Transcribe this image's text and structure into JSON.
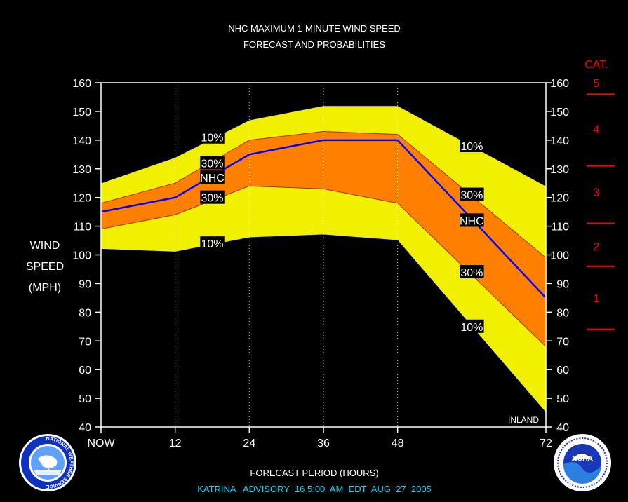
{
  "chart_data": {
    "type": "area",
    "title": "NHC MAXIMUM 1-MINUTE WIND SPEED",
    "subtitle": "FORECAST AND PROBABILITIES",
    "ylabel": [
      "WIND",
      "SPEED",
      "(MPH)"
    ],
    "xlabel": "FORECAST PERIOD (HOURS)",
    "footer": "KATRINA   ADVISORY  16 5:00  AM  EDT  AUG  27  2005",
    "inland_label": "INLAND",
    "xlim": [
      0,
      72
    ],
    "ylim": [
      40,
      160
    ],
    "x_ticks": [
      {
        "x": 0,
        "label": "NOW"
      },
      {
        "x": 12,
        "label": "12"
      },
      {
        "x": 24,
        "label": "24"
      },
      {
        "x": 36,
        "label": "36"
      },
      {
        "x": 48,
        "label": "48"
      },
      {
        "x": 72,
        "label": "72"
      }
    ],
    "y_ticks": [
      40,
      50,
      60,
      70,
      80,
      90,
      100,
      110,
      120,
      130,
      140,
      150,
      160
    ],
    "y_tick_labels": [
      "40",
      "50",
      "60",
      "70",
      "80",
      "90",
      "100",
      "110",
      "120",
      "130",
      "140",
      "150",
      "160"
    ],
    "grid_x": [
      12,
      24,
      36,
      48
    ],
    "x": [
      0,
      12,
      24,
      36,
      48,
      72
    ],
    "series": [
      {
        "name": "10%",
        "band": "outer",
        "color": "#f0f000",
        "upper": [
          125,
          134,
          147,
          152,
          152,
          124
        ],
        "lower": [
          102,
          101,
          106,
          107,
          105,
          45
        ]
      },
      {
        "name": "30%",
        "band": "inner",
        "color": "#ff8000",
        "upper": [
          118,
          125,
          140,
          143,
          142,
          99
        ],
        "lower": [
          109,
          114,
          124,
          123,
          118,
          68
        ]
      },
      {
        "name": "NHC",
        "line": true,
        "color": "#0000ff",
        "values": [
          115,
          120,
          135,
          140,
          140,
          85
        ]
      }
    ],
    "annotations": [
      {
        "text": "10%",
        "x": 18,
        "y": 141
      },
      {
        "text": "30%",
        "x": 18,
        "y": 132
      },
      {
        "text": "NHC",
        "x": 18,
        "y": 127
      },
      {
        "text": "30%",
        "x": 18,
        "y": 120
      },
      {
        "text": "10%",
        "x": 18,
        "y": 104
      },
      {
        "text": "10%",
        "x": 60,
        "y": 138
      },
      {
        "text": "30%",
        "x": 60,
        "y": 121
      },
      {
        "text": "NHC",
        "x": 60,
        "y": 112
      },
      {
        "text": "30%",
        "x": 60,
        "y": 94
      },
      {
        "text": "10%",
        "x": 60,
        "y": 75
      }
    ],
    "category_scale": {
      "title": "CAT.",
      "categories": [
        {
          "label": "5",
          "mid": 160
        },
        {
          "label": "4",
          "mid": 144
        },
        {
          "label": "3",
          "mid": 122
        },
        {
          "label": "2",
          "mid": 103
        },
        {
          "label": "1",
          "mid": 85
        }
      ],
      "boundaries": [
        156,
        131,
        111,
        96,
        74
      ]
    }
  },
  "logos": {
    "left": {
      "name": "national-weather-service-logo",
      "text": "NATIONAL WEATHER SERVICE"
    },
    "right": {
      "name": "noaa-logo",
      "text": "NOAA"
    }
  },
  "colors": {
    "background": "#000000",
    "plot_bg": "#000000",
    "axis": "#ffffff",
    "band_10": "#f0f000",
    "band_30": "#ff8000",
    "nhc_line": "#0000ff",
    "category": "#ff0000",
    "footer": "#00e0ff"
  }
}
